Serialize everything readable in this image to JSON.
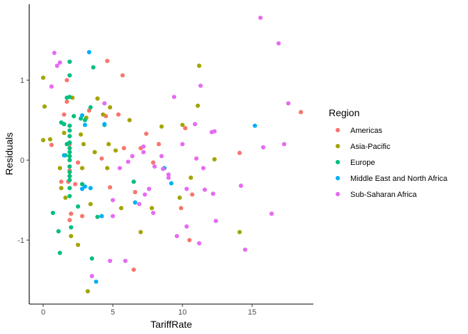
{
  "chart_data": {
    "type": "scatter",
    "title": "",
    "xlabel": "TariffRate",
    "ylabel": "Residuals",
    "xlim": [
      -1,
      19.4
    ],
    "ylim": [
      -1.8,
      1.95
    ],
    "x_ticks": [
      0,
      5,
      10,
      15
    ],
    "y_ticks": [
      -1,
      0,
      1
    ],
    "grid": false,
    "legend": {
      "title": "Region",
      "position": "right"
    },
    "series": [
      {
        "name": "Americas",
        "color": "#F8766D",
        "points": [
          [
            1.7,
            1.0
          ],
          [
            1.7,
            0.73
          ],
          [
            1.9,
            0.2
          ],
          [
            1.9,
            -0.13
          ],
          [
            1.8,
            -0.27
          ],
          [
            1.3,
            -0.27
          ],
          [
            1.9,
            -0.75
          ],
          [
            2.0,
            -0.67
          ],
          [
            2.3,
            -0.3
          ],
          [
            2.5,
            -0.03
          ],
          [
            2.8,
            -0.7
          ],
          [
            3.3,
            0.62
          ],
          [
            4.2,
            0.02
          ],
          [
            4.5,
            0.55
          ],
          [
            4.6,
            1.24
          ],
          [
            4.8,
            -0.34
          ],
          [
            5.4,
            0.57
          ],
          [
            5.7,
            1.06
          ],
          [
            5.8,
            0.15
          ],
          [
            6.5,
            -1.37
          ],
          [
            6.6,
            -0.4
          ],
          [
            7.0,
            0.15
          ],
          [
            7.4,
            0.33
          ],
          [
            7.9,
            -0.03
          ],
          [
            8.3,
            0.2
          ],
          [
            9.9,
            -0.6
          ],
          [
            10.2,
            0.4
          ],
          [
            10.5,
            -1.0
          ],
          [
            10.7,
            -0.43
          ],
          [
            14.1,
            0.09
          ],
          [
            18.5,
            0.6
          ],
          [
            0.6,
            0.19
          ],
          [
            1.5,
            0.57
          ]
        ]
      },
      {
        "name": "Asia-Pacific",
        "color": "#A3A500",
        "points": [
          [
            0.0,
            1.03
          ],
          [
            0.1,
            0.67
          ],
          [
            0.0,
            0.25
          ],
          [
            0.5,
            0.26
          ],
          [
            1.2,
            -0.1
          ],
          [
            1.3,
            -0.35
          ],
          [
            1.6,
            -0.47
          ],
          [
            1.9,
            -0.2
          ],
          [
            2.0,
            -0.95
          ],
          [
            2.1,
            0.78
          ],
          [
            2.5,
            -1.06
          ],
          [
            2.7,
            0.32
          ],
          [
            2.8,
            -0.1
          ],
          [
            3.2,
            -1.64
          ],
          [
            3.4,
            -0.55
          ],
          [
            3.7,
            0.1
          ],
          [
            3.9,
            0.77
          ],
          [
            4.3,
            0.57
          ],
          [
            4.6,
            -0.1
          ],
          [
            4.7,
            0.2
          ],
          [
            4.8,
            0.66
          ],
          [
            5.2,
            0.12
          ],
          [
            5.6,
            -0.6
          ],
          [
            6.2,
            0.5
          ],
          [
            7.0,
            -0.9
          ],
          [
            7.8,
            -0.6
          ],
          [
            8.5,
            0.42
          ],
          [
            9.8,
            -0.47
          ],
          [
            10.0,
            0.44
          ],
          [
            10.6,
            -0.22
          ],
          [
            11.1,
            0.68
          ],
          [
            11.2,
            1.18
          ],
          [
            12.3,
            0.01
          ],
          [
            14.1,
            -0.9
          ],
          [
            1.5,
            0.34
          ],
          [
            2.9,
            0.2
          ],
          [
            3.1,
            0.53
          ]
        ]
      },
      {
        "name": "Europe",
        "color": "#00BF7D",
        "points": [
          [
            0.7,
            -0.66
          ],
          [
            1.1,
            -0.89
          ],
          [
            1.2,
            -1.16
          ],
          [
            1.3,
            0.47
          ],
          [
            1.5,
            0.45
          ],
          [
            1.6,
            0.06
          ],
          [
            1.7,
            0.78
          ],
          [
            1.9,
            0.79
          ],
          [
            1.9,
            1.06
          ],
          [
            1.9,
            1.23
          ],
          [
            1.9,
            0.43
          ],
          [
            1.9,
            0.37
          ],
          [
            1.9,
            0.3
          ],
          [
            1.9,
            0.22
          ],
          [
            1.9,
            0.15
          ],
          [
            1.9,
            0.1
          ],
          [
            1.9,
            0.05
          ],
          [
            1.9,
            0.0
          ],
          [
            1.9,
            -0.08
          ],
          [
            1.9,
            -0.15
          ],
          [
            1.9,
            -0.2
          ],
          [
            1.9,
            -0.25
          ],
          [
            1.9,
            -0.35
          ],
          [
            1.9,
            -0.45
          ],
          [
            2.0,
            -0.84
          ],
          [
            2.5,
            -0.58
          ],
          [
            2.7,
            0.52
          ],
          [
            2.8,
            -0.3
          ],
          [
            3.0,
            0.5
          ],
          [
            3.4,
            0.66
          ],
          [
            3.5,
            -1.23
          ],
          [
            3.6,
            1.16
          ],
          [
            3.9,
            -0.71
          ],
          [
            4.4,
            0.44
          ],
          [
            6.5,
            -0.27
          ],
          [
            2.2,
            0.55
          ],
          [
            1.7,
            0.2
          ]
        ]
      },
      {
        "name": "Middle East and North Africa",
        "color": "#00B0F6",
        "points": [
          [
            1.5,
            0.06
          ],
          [
            2.8,
            0.56
          ],
          [
            2.8,
            -0.36
          ],
          [
            3.0,
            0.44
          ],
          [
            3.3,
            1.35
          ],
          [
            3.4,
            -0.35
          ],
          [
            3.8,
            -1.52
          ],
          [
            4.2,
            -0.7
          ],
          [
            4.4,
            0.45
          ],
          [
            6.6,
            -0.53
          ],
          [
            8.7,
            -0.1
          ],
          [
            9.2,
            -0.29
          ],
          [
            15.2,
            0.43
          ],
          [
            3.0,
            -0.33
          ]
        ]
      },
      {
        "name": "Sub-Saharan Africa",
        "color": "#E76BF3",
        "points": [
          [
            0.6,
            0.92
          ],
          [
            0.8,
            1.34
          ],
          [
            1.0,
            1.18
          ],
          [
            1.2,
            1.22
          ],
          [
            3.5,
            -1.45
          ],
          [
            4.4,
            0.71
          ],
          [
            4.8,
            -1.26
          ],
          [
            5.0,
            -0.7
          ],
          [
            5.0,
            -0.5
          ],
          [
            5.5,
            -0.1
          ],
          [
            5.9,
            -1.26
          ],
          [
            6.1,
            -0.02
          ],
          [
            6.4,
            0.05
          ],
          [
            6.9,
            -0.55
          ],
          [
            7.2,
            0.17
          ],
          [
            7.3,
            -0.43
          ],
          [
            7.6,
            -0.36
          ],
          [
            7.9,
            -0.66
          ],
          [
            7.2,
            0.1
          ],
          [
            8.0,
            -0.08
          ],
          [
            8.6,
            -0.11
          ],
          [
            9.0,
            -0.18
          ],
          [
            9.4,
            0.79
          ],
          [
            9.6,
            -0.95
          ],
          [
            10.0,
            0.2
          ],
          [
            10.3,
            -0.83
          ],
          [
            10.3,
            -0.36
          ],
          [
            10.9,
            0.45
          ],
          [
            11.0,
            0.02
          ],
          [
            11.2,
            -1.04
          ],
          [
            11.3,
            0.93
          ],
          [
            11.5,
            -0.1
          ],
          [
            11.6,
            -0.37
          ],
          [
            12.1,
            0.35
          ],
          [
            12.2,
            -0.42
          ],
          [
            12.3,
            0.36
          ],
          [
            12.4,
            -0.76
          ],
          [
            14.2,
            -0.32
          ],
          [
            14.5,
            -1.12
          ],
          [
            15.6,
            1.78
          ],
          [
            15.8,
            0.16
          ],
          [
            16.4,
            -0.67
          ],
          [
            16.9,
            1.46
          ],
          [
            17.3,
            0.2
          ],
          [
            17.6,
            0.71
          ],
          [
            8.5,
            0.05
          ],
          [
            9.0,
            -0.22
          ]
        ]
      }
    ]
  }
}
